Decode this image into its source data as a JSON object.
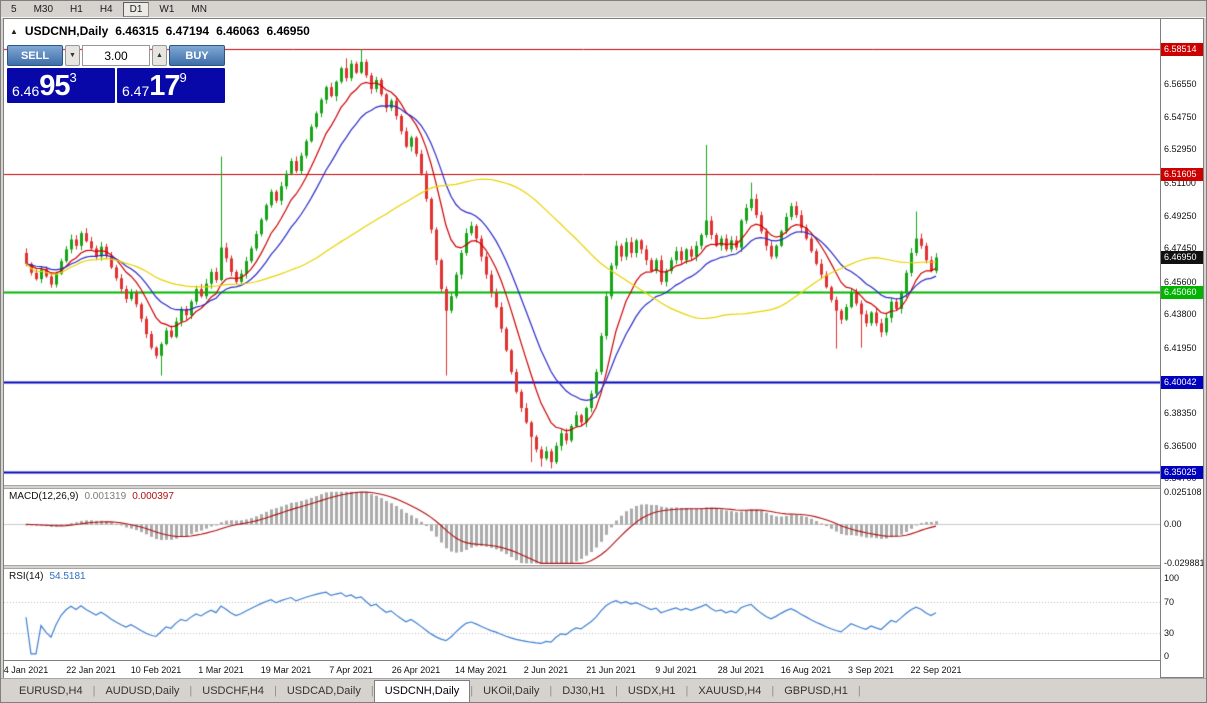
{
  "toolbar": {
    "periods": [
      "5",
      "M30",
      "H1",
      "H4",
      "D1",
      "W1",
      "MN"
    ],
    "active": "D1"
  },
  "trade_panel": {
    "sell_label": "SELL",
    "buy_label": "BUY",
    "volume": "3.00",
    "volume_down_glyph": "▼",
    "volume_up_glyph": "▲",
    "sell": {
      "base": "6.46",
      "big": "95",
      "pip": "3"
    },
    "buy": {
      "base": "6.47",
      "big": "17",
      "pip": "9"
    },
    "button_color": "#3E6EA8",
    "price_box_color": "#0808A8"
  },
  "chart_data": {
    "type": "candlestick",
    "symbol": "USDCNH",
    "timeframe": "Daily",
    "header": {
      "marker": "▲",
      "symbol": "USDCNH,Daily",
      "open": "6.46315",
      "high": "6.47194",
      "low": "6.46063",
      "close": "6.46950"
    },
    "up_color": "#18A318",
    "down_color": "#E03232",
    "y_range": [
      6.3433,
      6.6018
    ],
    "y_ticks": [
      {
        "price": 6.5655,
        "label": "6.56550"
      },
      {
        "price": 6.5475,
        "label": "6.54750"
      },
      {
        "price": 6.5295,
        "label": "6.52950"
      },
      {
        "price": 6.511,
        "label": "6.51100"
      },
      {
        "price": 6.4925,
        "label": "6.49250"
      },
      {
        "price": 6.4745,
        "label": "6.47450"
      },
      {
        "price": 6.456,
        "label": "6.45600"
      },
      {
        "price": 6.438,
        "label": "6.43800"
      },
      {
        "price": 6.4195,
        "label": "6.41950"
      },
      {
        "price": 6.401,
        "label": "6.40100"
      },
      {
        "price": 6.3835,
        "label": "6.38350"
      },
      {
        "price": 6.365,
        "label": "6.36500"
      },
      {
        "price": 6.347,
        "label": "6.34700"
      }
    ],
    "x_ticks": [
      {
        "index": 0,
        "label": "4 Jan 2021"
      },
      {
        "index": 13,
        "label": "22 Jan 2021"
      },
      {
        "index": 26,
        "label": "10 Feb 2021"
      },
      {
        "index": 39,
        "label": "1 Mar 2021"
      },
      {
        "index": 52,
        "label": "19 Mar 2021"
      },
      {
        "index": 65,
        "label": "7 Apr 2021"
      },
      {
        "index": 78,
        "label": "26 Apr 2021"
      },
      {
        "index": 91,
        "label": "14 May 2021"
      },
      {
        "index": 104,
        "label": "2 Jun 2021"
      },
      {
        "index": 117,
        "label": "21 Jun 2021"
      },
      {
        "index": 130,
        "label": "9 Jul 2021"
      },
      {
        "index": 143,
        "label": "28 Jul 2021"
      },
      {
        "index": 156,
        "label": "16 Aug 2021"
      },
      {
        "index": 169,
        "label": "3 Sep 2021"
      },
      {
        "index": 182,
        "label": "22 Sep 2021"
      }
    ],
    "first_open": 6.472,
    "closes": [
      6.466,
      6.461,
      6.4575,
      6.463,
      6.459,
      6.4545,
      6.4605,
      6.4675,
      6.474,
      6.4795,
      6.476,
      6.483,
      6.4785,
      6.4745,
      6.47,
      6.4755,
      6.4705,
      6.464,
      6.458,
      6.452,
      6.4465,
      6.45,
      6.4435,
      6.4355,
      6.427,
      6.4195,
      6.415,
      6.4215,
      6.429,
      6.4255,
      6.434,
      6.441,
      6.4375,
      6.445,
      6.452,
      6.448,
      6.455,
      6.4615,
      6.457,
      6.475,
      6.469,
      6.4615,
      6.456,
      6.4605,
      6.4675,
      6.4745,
      6.4825,
      6.4905,
      6.4985,
      6.506,
      6.501,
      6.509,
      6.516,
      6.523,
      6.5175,
      6.526,
      6.534,
      6.542,
      6.5495,
      6.557,
      6.564,
      6.559,
      6.567,
      6.5745,
      6.569,
      6.577,
      6.572,
      6.578,
      6.5705,
      6.563,
      6.568,
      6.56,
      6.5525,
      6.5565,
      6.548,
      6.5395,
      6.531,
      6.536,
      6.527,
      6.516,
      6.502,
      6.485,
      6.468,
      6.452,
      6.44,
      6.448,
      6.46,
      6.472,
      6.483,
      6.487,
      6.48,
      6.47,
      6.46,
      6.45,
      6.442,
      6.43,
      6.418,
      6.406,
      6.395,
      6.386,
      6.378,
      6.37,
      6.363,
      6.358,
      6.362,
      6.356,
      6.365,
      6.372,
      6.368,
      6.376,
      6.382,
      6.378,
      6.386,
      6.394,
      6.406,
      6.426,
      6.448,
      6.465,
      6.476,
      6.47,
      6.478,
      6.472,
      6.479,
      6.474,
      6.468,
      6.462,
      6.468,
      6.456,
      6.462,
      6.468,
      6.473,
      6.468,
      6.474,
      6.47,
      6.476,
      6.482,
      6.49,
      6.482,
      6.476,
      6.48,
      6.474,
      6.479,
      6.475,
      6.49,
      6.497,
      6.502,
      6.493,
      6.484,
      6.476,
      6.47,
      6.476,
      6.484,
      6.492,
      6.498,
      6.493,
      6.486,
      6.48,
      6.473,
      6.466,
      6.46,
      6.453,
      6.446,
      6.44,
      6.435,
      6.442,
      6.45,
      6.444,
      6.438,
      6.433,
      6.439,
      6.433,
      6.428,
      6.436,
      6.445,
      6.441,
      6.45,
      6.461,
      6.472,
      6.48,
      6.476,
      6.468,
      6.462,
      6.4695
    ],
    "wick_overrides": {
      "27": {
        "low": 6.404
      },
      "39": {
        "high": 6.5255
      },
      "64": {
        "high": 6.58
      },
      "67": {
        "high": 6.5851
      },
      "84": {
        "low": 6.404
      },
      "101": {
        "low": 6.356
      },
      "103": {
        "low": 6.3535
      },
      "105": {
        "low": 6.3525
      },
      "136": {
        "high": 6.532
      },
      "145": {
        "high": 6.511
      },
      "162": {
        "low": 6.419
      },
      "167": {
        "low": 6.4195
      },
      "178": {
        "high": 6.495
      },
      "182": {
        "high": 6.4719,
        "low": 6.4606
      }
    },
    "levels": [
      {
        "price": 6.58514,
        "label": "6.58514",
        "color": "#CC0000",
        "line_width": 1
      },
      {
        "price": 6.51605,
        "label": "6.51605",
        "color": "#CC0000",
        "line_width": 1
      },
      {
        "price": 6.4695,
        "label": "6.46950",
        "color": "#111111",
        "line_width": 0
      },
      {
        "price": 6.4506,
        "label": "6.45060",
        "color": "#00B400",
        "line_width": 2
      },
      {
        "price": 6.40042,
        "label": "6.40042",
        "color": "#0000BE",
        "line_width": 2
      },
      {
        "price": 6.35025,
        "label": "6.35025",
        "color": "#0000BE",
        "line_width": 2
      }
    ],
    "current_price": "6.46950",
    "moving_averages": [
      {
        "name": "ma-fast",
        "method": "ema",
        "period": 9,
        "color": "#CC0000"
      },
      {
        "name": "ma-mid",
        "method": "ema",
        "period": 18,
        "color": "#2B2BC8"
      },
      {
        "name": "ma-slow",
        "method": "sma",
        "period": 55,
        "color": "#E8D200"
      }
    ],
    "indicators": {
      "macd": {
        "label": "MACD(12,26,9)",
        "value_main": "0.001319",
        "value_signal": "0.000397",
        "params": {
          "fast": 12,
          "slow": 26,
          "signal": 9
        },
        "histogram_color": "#ABABAB",
        "signal_color": "#B01010",
        "y_range": [
          -0.0315,
          0.0275
        ],
        "ticks": [
          {
            "value": 0.025108,
            "label": "0.025108"
          },
          {
            "value": 0,
            "label": "0.00"
          },
          {
            "value": -0.029881,
            "label": "-0.029881"
          }
        ]
      },
      "rsi": {
        "label": "RSI(14)",
        "value": "54.5181",
        "period": 14,
        "line_color": "#3F7FD2",
        "levels": [
          70,
          30
        ],
        "y_range": [
          -5,
          112
        ],
        "ticks": [
          {
            "value": 100,
            "label": "100"
          },
          {
            "value": 70,
            "label": "70"
          },
          {
            "value": 30,
            "label": "30"
          },
          {
            "value": 0,
            "label": "0"
          }
        ]
      }
    }
  },
  "tabs": {
    "items": [
      "EURUSD,H4",
      "AUDUSD,Daily",
      "USDCHF,H4",
      "USDCAD,Daily",
      "USDCNH,Daily",
      "UKOil,Daily",
      "DJ30,H1",
      "USDX,H1",
      "XAUUSD,H4",
      "GBPUSD,H1"
    ],
    "active": "USDCNH,Daily"
  }
}
